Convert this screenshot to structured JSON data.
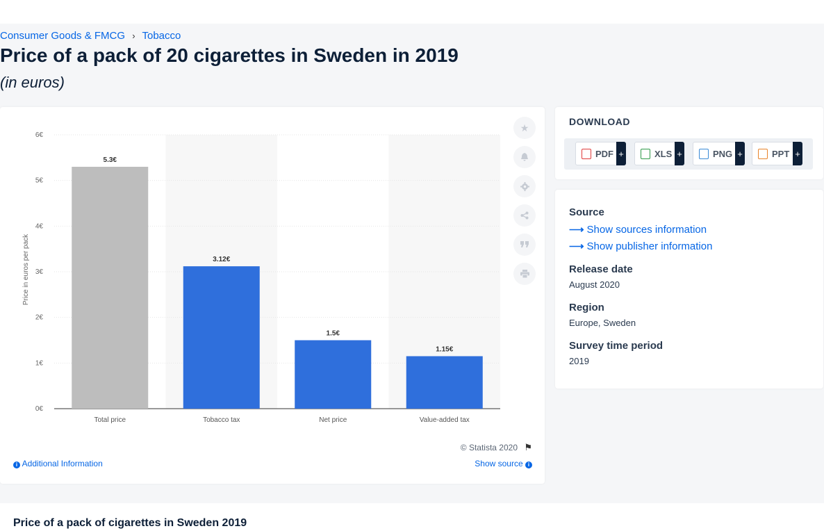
{
  "breadcrumb": {
    "items": [
      "Consumer Goods & FMCG",
      "Tobacco"
    ],
    "separator": "›"
  },
  "page": {
    "title": "Price of a pack of 20 cigarettes in Sweden in 2019",
    "subtitle": "(in euros)"
  },
  "chart_data": {
    "type": "bar",
    "categories": [
      "Total price",
      "Tobacco tax",
      "Net price",
      "Value-added tax"
    ],
    "values": [
      5.3,
      3.12,
      1.5,
      1.15
    ],
    "data_labels": [
      "5.3€",
      "3.12€",
      "1.5€",
      "1.15€"
    ],
    "bar_colors": [
      "#bdbdbd",
      "#2f6fdc",
      "#2f6fdc",
      "#2f6fdc"
    ],
    "ylabel": "Price in euros per pack",
    "ylim": [
      0,
      6
    ],
    "y_ticks": [
      0,
      1,
      2,
      3,
      4,
      5,
      6
    ],
    "y_tick_labels": [
      "0€",
      "1€",
      "2€",
      "3€",
      "4€",
      "5€",
      "6€"
    ],
    "grid": true,
    "legend": false
  },
  "chart_footer": {
    "copyright": "© Statista 2020",
    "additional_info": "Additional Information",
    "show_source": "Show source"
  },
  "toolbar_icons": [
    "star-icon",
    "bell-icon",
    "gear-icon",
    "share-icon",
    "quote-icon",
    "print-icon"
  ],
  "download": {
    "heading": "DOWNLOAD",
    "buttons": [
      {
        "label": "PDF",
        "plus": "+",
        "color": "#e03b3b"
      },
      {
        "label": "XLS",
        "plus": "+",
        "color": "#2e9a48"
      },
      {
        "label": "PNG",
        "plus": "+",
        "color": "#3a8ad6"
      },
      {
        "label": "PPT",
        "plus": "+",
        "color": "#e8832a"
      }
    ]
  },
  "meta": {
    "source_heading": "Source",
    "show_sources": "Show sources information",
    "show_publisher": "Show publisher information",
    "release_heading": "Release date",
    "release_value": "August 2020",
    "region_heading": "Region",
    "region_value": "Europe, Sweden",
    "survey_heading": "Survey time period",
    "survey_value": "2019"
  },
  "bottom": {
    "title": "Price of a pack of cigarettes in Sweden 2019"
  }
}
